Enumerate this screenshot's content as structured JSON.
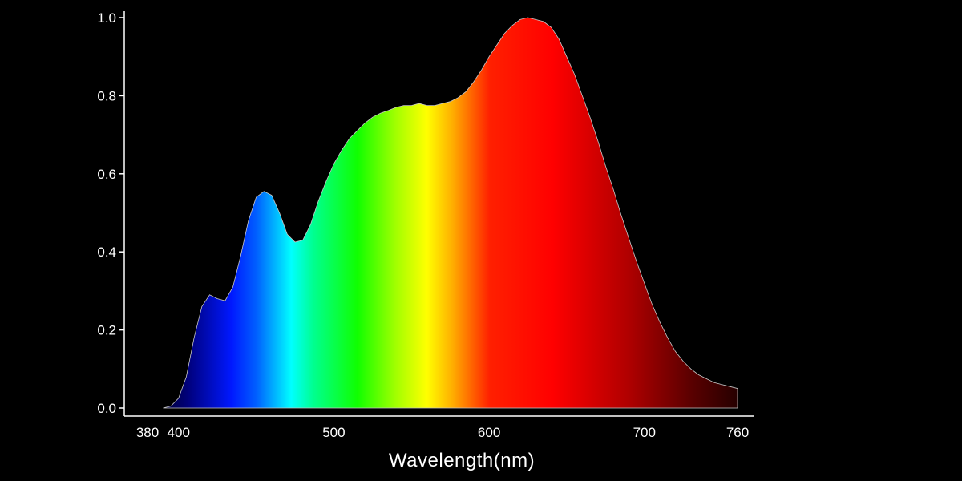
{
  "chart_data": {
    "type": "area",
    "title": "",
    "xlabel": "Wavelength(nm)",
    "ylabel": "",
    "xlim": [
      380,
      760
    ],
    "ylim": [
      0,
      1.0
    ],
    "x_ticks": [
      380,
      400,
      500,
      600,
      700,
      760
    ],
    "x_tick_labels": [
      "380",
      "400",
      "500",
      "600",
      "700",
      "760"
    ],
    "y_ticks": [
      0.0,
      0.2,
      0.4,
      0.6,
      0.8,
      1.0
    ],
    "y_tick_labels": [
      "0.0",
      "0.2",
      "0.4",
      "0.6",
      "0.8",
      "1.0"
    ],
    "grid": false,
    "fill": "visible-spectrum gradient",
    "background_color": "#000000",
    "axis_color": "#ffffff",
    "series": [
      {
        "x": [
          390,
          395,
          400,
          405,
          410,
          415,
          420,
          425,
          430,
          435,
          440,
          445,
          450,
          455,
          460,
          465,
          470,
          475,
          480,
          485,
          490,
          495,
          500,
          505,
          510,
          515,
          520,
          525,
          530,
          535,
          540,
          545,
          550,
          555,
          560,
          565,
          570,
          575,
          580,
          585,
          590,
          595,
          600,
          605,
          610,
          615,
          620,
          625,
          630,
          635,
          640,
          645,
          650,
          655,
          660,
          665,
          670,
          675,
          680,
          685,
          690,
          695,
          700,
          705,
          710,
          715,
          720,
          725,
          730,
          735,
          740,
          745,
          750,
          755,
          760
        ],
        "y": [
          0.0,
          0.005,
          0.025,
          0.08,
          0.18,
          0.26,
          0.29,
          0.28,
          0.275,
          0.31,
          0.39,
          0.48,
          0.54,
          0.555,
          0.545,
          0.5,
          0.445,
          0.425,
          0.43,
          0.47,
          0.53,
          0.58,
          0.625,
          0.66,
          0.69,
          0.71,
          0.73,
          0.745,
          0.755,
          0.762,
          0.77,
          0.775,
          0.775,
          0.78,
          0.775,
          0.775,
          0.78,
          0.785,
          0.795,
          0.81,
          0.835,
          0.865,
          0.9,
          0.93,
          0.96,
          0.98,
          0.995,
          1.0,
          0.995,
          0.99,
          0.975,
          0.945,
          0.9,
          0.855,
          0.8,
          0.745,
          0.685,
          0.62,
          0.56,
          0.495,
          0.435,
          0.375,
          0.32,
          0.265,
          0.22,
          0.18,
          0.145,
          0.12,
          0.1,
          0.085,
          0.075,
          0.065,
          0.06,
          0.055,
          0.05
        ]
      }
    ]
  }
}
